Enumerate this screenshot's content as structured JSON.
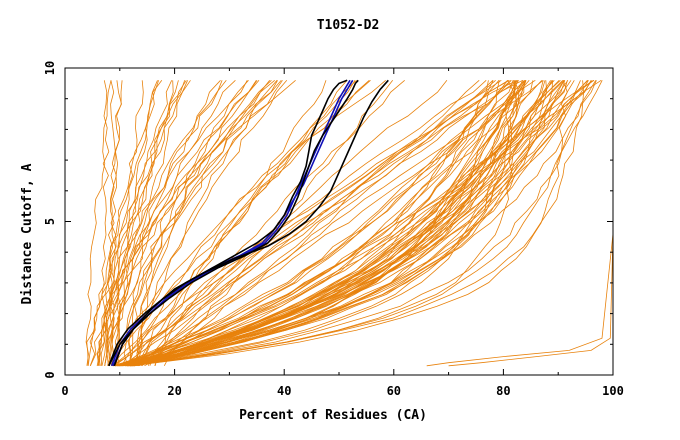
{
  "chart_data": {
    "type": "line",
    "title": "T1052-D2",
    "xlabel": "Percent of Residues (CA)",
    "ylabel": "Distance Cutoff, A",
    "xlim": [
      0,
      100
    ],
    "ylim": [
      0,
      10
    ],
    "x_ticks": [
      "0",
      "20",
      "40",
      "60",
      "80",
      "100"
    ],
    "y_ticks": [
      "0",
      "5",
      "10"
    ],
    "grid": false,
    "colors": {
      "orange": "#e8820c",
      "blue": "#1010b8",
      "black": "#000000"
    },
    "series": [
      {
        "color": "blue",
        "x": [
          8.5,
          10,
          12,
          15,
          18,
          22,
          27,
          32,
          36,
          38,
          40,
          42,
          43,
          44,
          45,
          46,
          47,
          48,
          49,
          50,
          51,
          52
        ],
        "y": [
          0.3,
          1.0,
          1.5,
          2.0,
          2.5,
          3.0,
          3.5,
          3.9,
          4.3,
          4.7,
          5.2,
          5.8,
          6.2,
          6.6,
          7.0,
          7.4,
          7.8,
          8.2,
          8.6,
          9.0,
          9.3,
          9.6
        ]
      },
      {
        "color": "blue",
        "x": [
          8.8,
          10.5,
          12.5,
          15.5,
          18.5,
          22.5,
          27.5,
          32.5,
          36.5,
          38.5,
          40.5,
          42,
          43.5,
          44.5,
          45.5,
          46.5,
          47.5,
          48.5,
          49.5,
          50.5,
          51.5,
          52.5
        ],
        "y": [
          0.3,
          1.0,
          1.5,
          2.0,
          2.5,
          3.0,
          3.5,
          3.9,
          4.3,
          4.7,
          5.2,
          5.8,
          6.2,
          6.6,
          7.0,
          7.4,
          7.8,
          8.2,
          8.6,
          9.0,
          9.3,
          9.6
        ]
      },
      {
        "color": "black",
        "x": [
          8,
          9.5,
          11.5,
          14.5,
          18,
          22,
          27,
          31,
          35,
          38,
          40,
          41.5,
          43,
          44,
          44.5,
          45,
          46,
          47,
          48,
          49,
          50,
          51.5
        ],
        "y": [
          0.3,
          1.0,
          1.5,
          2.0,
          2.5,
          3.0,
          3.5,
          3.9,
          4.3,
          4.7,
          5.2,
          5.8,
          6.3,
          6.8,
          7.3,
          7.8,
          8.2,
          8.6,
          9.0,
          9.3,
          9.5,
          9.6
        ]
      },
      {
        "color": "black",
        "x": [
          9,
          10.5,
          12.5,
          15.5,
          19,
          23,
          28,
          33,
          37,
          39,
          41,
          42.5,
          43.5,
          44.5,
          45.5,
          47,
          48.5,
          50,
          51.5,
          52.5,
          53,
          53.5
        ],
        "y": [
          0.3,
          1.0,
          1.5,
          2.0,
          2.5,
          3.0,
          3.5,
          3.9,
          4.3,
          4.7,
          5.2,
          5.8,
          6.3,
          6.8,
          7.3,
          7.8,
          8.2,
          8.6,
          9.0,
          9.3,
          9.5,
          9.6
        ]
      },
      {
        "color": "black",
        "x": [
          8,
          10,
          13,
          16,
          20,
          25,
          31,
          37,
          41,
          44,
          46.5,
          48.5,
          50,
          51.5,
          53,
          54.5,
          56,
          57.5,
          59
        ],
        "y": [
          0.3,
          1.0,
          1.6,
          2.2,
          2.8,
          3.3,
          3.8,
          4.2,
          4.6,
          5.0,
          5.5,
          6.0,
          6.6,
          7.2,
          7.8,
          8.4,
          8.9,
          9.3,
          9.6
        ]
      }
    ]
  }
}
